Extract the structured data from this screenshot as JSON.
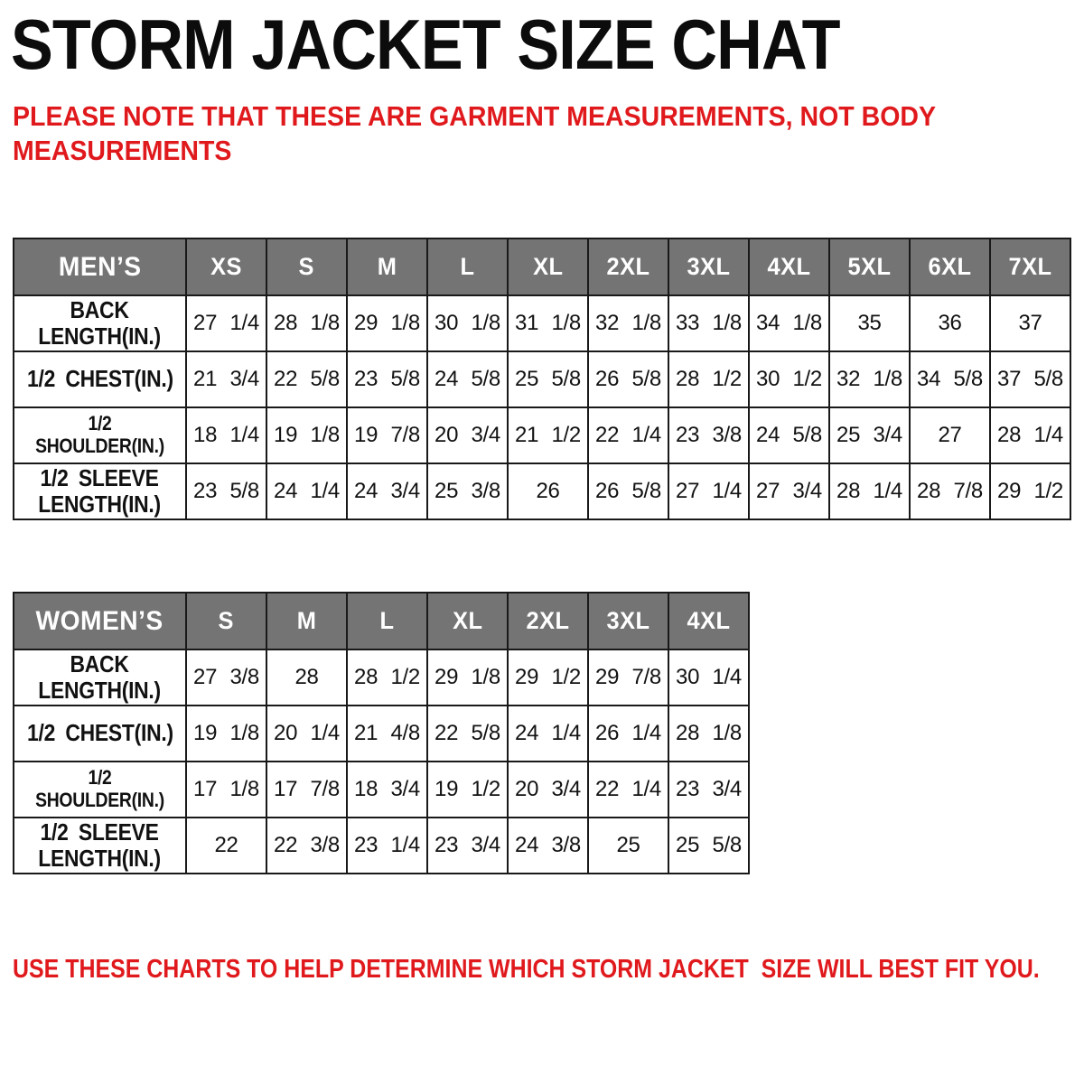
{
  "page_title": "STORM JACKET SIZE CHAT",
  "note_lines": [
    "PLEASE NOTE THAT THESE ARE GARMENT MEASUREMENTS, NOT BODY",
    "MEASUREMENTS"
  ],
  "footer": "USE THESE CHARTS TO HELP DETERMINE WHICH STORM JACKET  SIZE WILL BEST FIT YOU.",
  "colors": {
    "accent_red": "#e0191d",
    "table_header_gray": "#747474",
    "table_header_text": "#ffffff",
    "table_border": "#191919",
    "title_ink": "#0c0c0c"
  },
  "chart_data": [
    {
      "type": "table",
      "id": "mens",
      "corner_label": "MEN’S",
      "columns": [
        "XS",
        "S",
        "M",
        "L",
        "XL",
        "2XL",
        "3XL",
        "4XL",
        "5XL",
        "6XL",
        "7XL"
      ],
      "rows": [
        {
          "label_lines": [
            "BACK",
            "LENGTH(IN.)"
          ],
          "values": [
            "27 1/4",
            "28 1/8",
            "29 1/8",
            "30 1/8",
            "31 1/8",
            "32 1/8",
            "33 1/8",
            "34 1/8",
            "35",
            "36",
            "37"
          ]
        },
        {
          "label_lines": [
            "1/2 CHEST(IN.)"
          ],
          "values": [
            "21 3/4",
            "22 5/8",
            "23 5/8",
            "24 5/8",
            "25 5/8",
            "26 5/8",
            "28 1/2",
            "30 1/2",
            "32 1/8",
            "34 5/8",
            "37 5/8"
          ]
        },
        {
          "label_lines": [
            "1/2 SHOULDER(IN.)"
          ],
          "values": [
            "18 1/4",
            "19 1/8",
            "19 7/8",
            "20 3/4",
            "21 1/2",
            "22 1/4",
            "23 3/8",
            "24 5/8",
            "25 3/4",
            "27",
            "28 1/4"
          ]
        },
        {
          "label_lines": [
            "1/2 SLEEVE",
            "LENGTH(IN.)"
          ],
          "values": [
            "23 5/8",
            "24 1/4",
            "24 3/4",
            "25 3/8",
            "26",
            "26 5/8",
            "27 1/4",
            "27 3/4",
            "28 1/4",
            "28 7/8",
            "29 1/2"
          ]
        }
      ]
    },
    {
      "type": "table",
      "id": "womens",
      "corner_label": "WOMEN’S",
      "columns": [
        "S",
        "M",
        "L",
        "XL",
        "2XL",
        "3XL",
        "4XL"
      ],
      "rows": [
        {
          "label_lines": [
            "BACK",
            "LENGTH(IN.)"
          ],
          "values": [
            "27 3/8",
            "28",
            "28 1/2",
            "29 1/8",
            "29 1/2",
            "29 7/8",
            "30 1/4"
          ]
        },
        {
          "label_lines": [
            "1/2 CHEST(IN.)"
          ],
          "values": [
            "19 1/8",
            "20 1/4",
            "21 4/8",
            "22 5/8",
            "24 1/4",
            "26 1/4",
            "28 1/8"
          ]
        },
        {
          "label_lines": [
            "1/2 SHOULDER(IN.)"
          ],
          "values": [
            "17 1/8",
            "17 7/8",
            "18 3/4",
            "19 1/2",
            "20 3/4",
            "22 1/4",
            "23 3/4"
          ]
        },
        {
          "label_lines": [
            "1/2 SLEEVE",
            "LENGTH(IN.)"
          ],
          "values": [
            "22",
            "22 3/8",
            "23 1/4",
            "23 3/4",
            "24 3/8",
            "25",
            "25 5/8"
          ]
        }
      ]
    }
  ]
}
